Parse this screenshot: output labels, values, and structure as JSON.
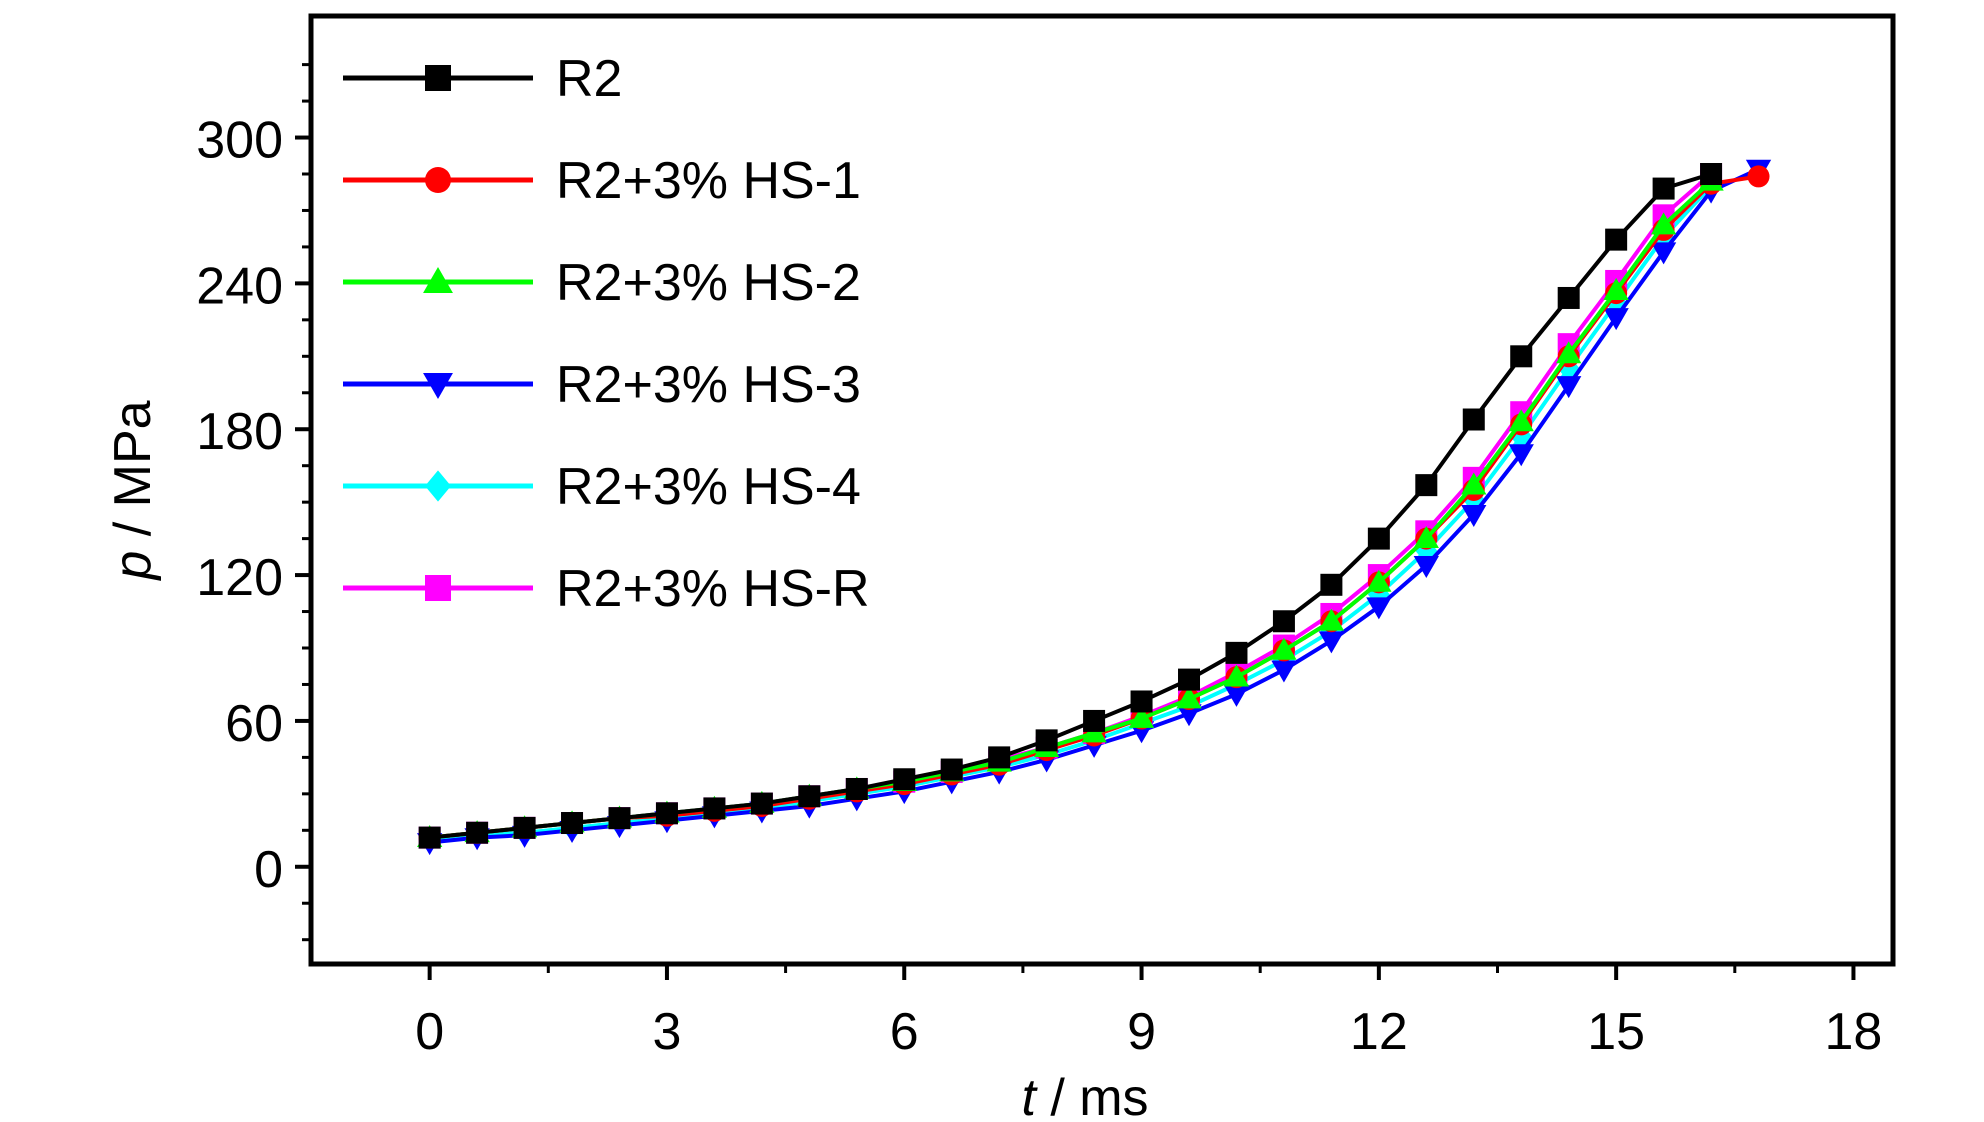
{
  "chart_data": {
    "type": "line",
    "xlabel": {
      "var": "t",
      "unit": " / ms"
    },
    "ylabel": {
      "var": "p",
      "unit": " / MPa"
    },
    "xlim": [
      -1.5,
      18.5
    ],
    "ylim": [
      -40,
      350
    ],
    "xticks": [
      0,
      3,
      6,
      9,
      12,
      15,
      18
    ],
    "xtick_labels": [
      "0",
      "3",
      "6",
      "9",
      "12",
      "15",
      "18"
    ],
    "yticks": [
      0,
      60,
      120,
      180,
      240,
      300
    ],
    "ytick_labels": [
      "0",
      "60",
      "120",
      "180",
      "240",
      "300"
    ],
    "legend_position": "top-left",
    "grid": false,
    "series": [
      {
        "name": "R2",
        "color": "#000000",
        "marker": "square",
        "x": [
          0,
          0.6,
          1.2,
          1.8,
          2.4,
          3.0,
          3.6,
          4.2,
          4.8,
          5.4,
          6.0,
          6.6,
          7.2,
          7.8,
          8.4,
          9.0,
          9.6,
          10.2,
          10.8,
          11.4,
          12.0,
          12.6,
          13.2,
          13.8,
          14.4,
          15.0,
          15.6,
          16.2
        ],
        "y": [
          12,
          14,
          16,
          18,
          20,
          22,
          24,
          26,
          29,
          32,
          36,
          40,
          45,
          52,
          60,
          68,
          77,
          88,
          101,
          116,
          135,
          157,
          184,
          210,
          234,
          258,
          279,
          285
        ]
      },
      {
        "name": "R2+3% HS-1",
        "color": "#ff0000",
        "marker": "circle",
        "x": [
          0,
          0.6,
          1.2,
          1.8,
          2.4,
          3.0,
          3.6,
          4.2,
          4.8,
          5.4,
          6.0,
          6.6,
          7.2,
          7.8,
          8.4,
          9.0,
          9.6,
          10.2,
          10.8,
          11.4,
          12.0,
          12.6,
          13.2,
          13.8,
          14.4,
          15.0,
          15.6,
          16.2,
          16.8
        ],
        "y": [
          12,
          14,
          16,
          18,
          20,
          21,
          23,
          25,
          28,
          31,
          34,
          38,
          42,
          48,
          54,
          61,
          69,
          78,
          89,
          101,
          117,
          135,
          155,
          182,
          210,
          236,
          262,
          281,
          284
        ]
      },
      {
        "name": "R2+3% HS-2",
        "color": "#00ff00",
        "marker": "triangle-up",
        "x": [
          0,
          0.6,
          1.2,
          1.8,
          2.4,
          3.0,
          3.6,
          4.2,
          4.8,
          5.4,
          6.0,
          6.6,
          7.2,
          7.8,
          8.4,
          9.0,
          9.6,
          10.2,
          10.8,
          11.4,
          12.0,
          12.6,
          13.2,
          13.8,
          14.4,
          15.0,
          15.6,
          16.2
        ],
        "y": [
          12,
          14,
          16,
          18,
          20,
          22,
          24,
          26,
          29,
          32,
          35,
          39,
          43,
          49,
          55,
          61,
          69,
          78,
          89,
          101,
          117,
          135,
          157,
          183,
          211,
          237,
          264,
          282
        ]
      },
      {
        "name": "R2+3% HS-3",
        "color": "#0000ff",
        "marker": "triangle-down",
        "x": [
          0,
          0.6,
          1.2,
          1.8,
          2.4,
          3.0,
          3.6,
          4.2,
          4.8,
          5.4,
          6.0,
          6.6,
          7.2,
          7.8,
          8.4,
          9.0,
          9.6,
          10.2,
          10.8,
          11.4,
          12.0,
          12.6,
          13.2,
          13.8,
          14.4,
          15.0,
          15.6,
          16.2,
          16.8
        ],
        "y": [
          10,
          12,
          13,
          15,
          17,
          19,
          21,
          23,
          25,
          28,
          31,
          35,
          39,
          44,
          50,
          56,
          63,
          71,
          81,
          93,
          107,
          124,
          145,
          170,
          198,
          226,
          253,
          278,
          287
        ]
      },
      {
        "name": "R2+3% HS-4",
        "color": "#00ffff",
        "marker": "diamond",
        "x": [
          0,
          0.6,
          1.2,
          1.8,
          2.4,
          3.0,
          3.6,
          4.2,
          4.8,
          5.4,
          6.0,
          6.6,
          7.2,
          7.8,
          8.4,
          9.0,
          9.6,
          10.2,
          10.8,
          11.4,
          12.0,
          12.6,
          13.2,
          13.8,
          14.4,
          15.0,
          15.6,
          16.2
        ],
        "y": [
          11,
          13,
          14,
          16,
          18,
          20,
          22,
          24,
          27,
          30,
          33,
          37,
          41,
          46,
          52,
          59,
          66,
          75,
          85,
          97,
          112,
          130,
          151,
          177,
          205,
          232,
          259,
          280
        ]
      },
      {
        "name": "R2+3% HS-R",
        "color": "#ff00ff",
        "marker": "square",
        "x": [
          0,
          0.6,
          1.2,
          1.8,
          2.4,
          3.0,
          3.6,
          4.2,
          4.8,
          5.4,
          6.0,
          6.6,
          7.2,
          7.8,
          8.4,
          9.0,
          9.6,
          10.2,
          10.8,
          11.4,
          12.0,
          12.6,
          13.2,
          13.8,
          14.4,
          15.0,
          15.6,
          16.2
        ],
        "y": [
          12,
          14,
          16,
          18,
          20,
          22,
          24,
          26,
          29,
          32,
          35,
          39,
          44,
          49,
          55,
          62,
          70,
          80,
          91,
          104,
          120,
          138,
          160,
          187,
          215,
          241,
          268,
          285
        ]
      }
    ]
  }
}
